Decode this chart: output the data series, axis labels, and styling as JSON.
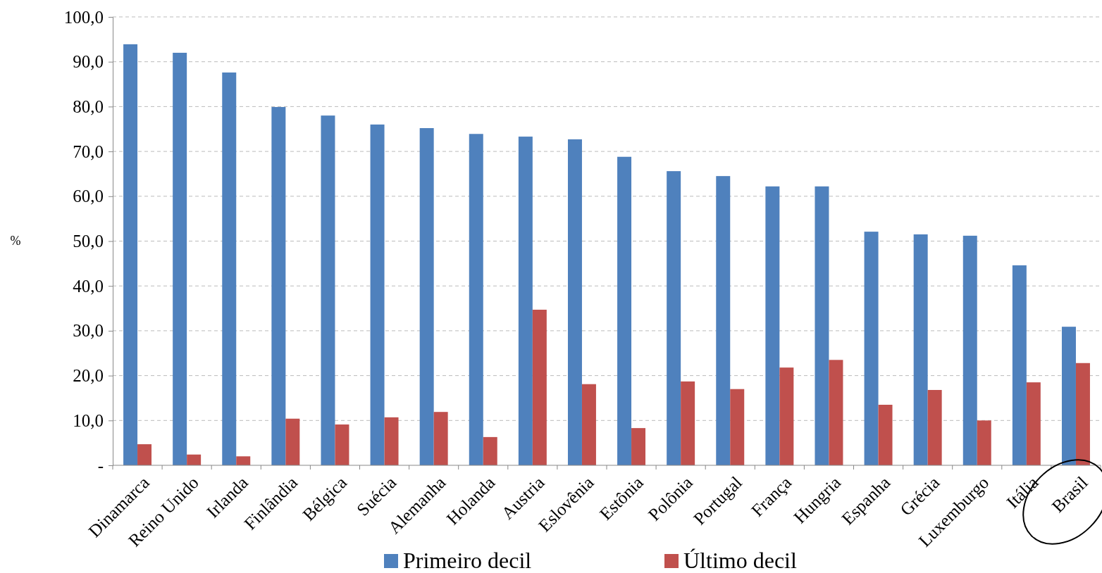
{
  "chart_data": {
    "type": "bar",
    "ylabel": "%",
    "categories": [
      "Dinamarca",
      "Reino Unido",
      "Irlanda",
      "Finlândia",
      "Bélgica",
      "Suécia",
      "Alemanha",
      "Holanda",
      "Austria",
      "Eslovênia",
      "Estônia",
      "Polônia",
      "Portugal",
      "França",
      "Hungria",
      "Espanha",
      "Grécia",
      "Luxemburgo",
      "Itália",
      "Brasil"
    ],
    "series": [
      {
        "name": "Primeiro decil",
        "color": "#4f81bd",
        "values": [
          93.9,
          92.0,
          87.6,
          79.9,
          78.0,
          76.0,
          75.2,
          73.9,
          73.3,
          72.7,
          68.8,
          65.6,
          64.5,
          62.2,
          62.2,
          52.1,
          51.5,
          51.2,
          44.6,
          30.9
        ]
      },
      {
        "name": "Último decil",
        "color": "#c0504d",
        "values": [
          4.7,
          2.4,
          2.0,
          10.4,
          9.1,
          10.7,
          11.9,
          6.3,
          34.7,
          18.1,
          8.3,
          18.7,
          17.0,
          21.8,
          23.5,
          13.5,
          16.8,
          10.0,
          18.5,
          22.8
        ]
      }
    ],
    "ylim": [
      0,
      100
    ],
    "yticks": [
      {
        "value": 0,
        "label": "-"
      },
      {
        "value": 10,
        "label": "10,0"
      },
      {
        "value": 20,
        "label": "20,0"
      },
      {
        "value": 30,
        "label": "30,0"
      },
      {
        "value": 40,
        "label": "40,0"
      },
      {
        "value": 50,
        "label": "50,0"
      },
      {
        "value": 60,
        "label": "60,0"
      },
      {
        "value": 70,
        "label": "70,0"
      },
      {
        "value": 80,
        "label": "80,0"
      },
      {
        "value": 90,
        "label": "90,0"
      },
      {
        "value": 100,
        "label": "100,0"
      }
    ],
    "grid": "y",
    "legend": "bottom"
  }
}
